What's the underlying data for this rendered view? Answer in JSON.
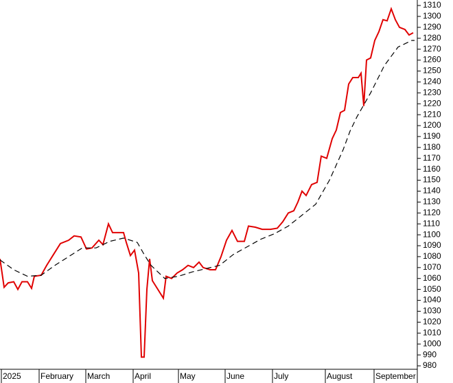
{
  "chart_data": {
    "type": "line",
    "xlim": [
      0,
      304
    ],
    "xticks": [
      {
        "value": 1,
        "label": "2025"
      },
      {
        "value": 28.5,
        "label": "February"
      },
      {
        "value": 62.5,
        "label": "March"
      },
      {
        "value": 97,
        "label": "April"
      },
      {
        "value": 130,
        "label": "May"
      },
      {
        "value": 164,
        "label": "June"
      },
      {
        "value": 198.5,
        "label": "July"
      },
      {
        "value": 237,
        "label": "August"
      },
      {
        "value": 272.5,
        "label": "September"
      }
    ],
    "ylim": [
      980,
      1310
    ],
    "yticks": [
      980,
      990,
      1000,
      1010,
      1020,
      1030,
      1040,
      1050,
      1060,
      1070,
      1080,
      1090,
      1100,
      1110,
      1120,
      1130,
      1140,
      1150,
      1160,
      1170,
      1180,
      1190,
      1200,
      1210,
      1220,
      1230,
      1240,
      1250,
      1260,
      1270,
      1280,
      1290,
      1300,
      1310
    ],
    "series": [
      {
        "color": "#e00000",
        "style": "solid",
        "x": [
          0,
          3,
          6,
          10,
          13,
          16,
          20,
          23,
          25,
          30,
          34,
          39,
          44,
          50,
          54,
          59,
          63,
          67,
          72,
          75,
          79,
          82,
          86,
          90,
          92,
          95,
          98,
          101,
          103,
          105,
          107,
          109,
          111,
          115,
          119,
          121,
          125,
          129,
          133,
          137,
          141,
          145,
          148,
          153,
          157,
          161,
          165,
          169,
          173,
          178,
          181,
          186,
          191,
          197,
          202,
          206,
          210,
          214,
          217,
          220,
          223,
          227,
          231,
          234,
          238,
          242,
          245,
          248,
          251,
          254,
          257,
          261,
          263,
          265,
          267,
          270,
          273,
          276,
          279,
          282,
          285,
          288,
          291,
          295,
          298,
          301
        ],
        "values": [
          1078,
          1052,
          1056,
          1057,
          1050,
          1057,
          1057,
          1051,
          1062,
          1063,
          1072,
          1082,
          1092,
          1095,
          1099,
          1098,
          1087,
          1088,
          1095,
          1091,
          1110,
          1102,
          1102,
          1102,
          1093,
          1081,
          1086,
          1065,
          988,
          988,
          1050,
          1078,
          1058,
          1050,
          1042,
          1062,
          1060,
          1065,
          1068,
          1072,
          1070,
          1075,
          1070,
          1068,
          1068,
          1080,
          1095,
          1104,
          1094,
          1094,
          1108,
          1107,
          1105,
          1105,
          1106,
          1112,
          1120,
          1122,
          1130,
          1140,
          1136,
          1146,
          1148,
          1172,
          1170,
          1188,
          1196,
          1212,
          1214,
          1238,
          1244,
          1244,
          1248,
          1218,
          1260,
          1262,
          1278,
          1286,
          1297,
          1296,
          1307,
          1297,
          1290,
          1288,
          1283,
          1285
        ]
      },
      {
        "color": "#000000",
        "style": "dashed",
        "x": [
          0,
          10,
          20,
          30,
          40,
          50,
          60,
          70,
          80,
          90,
          100,
          105,
          110,
          120,
          130,
          140,
          150,
          160,
          170,
          180,
          190,
          200,
          210,
          220,
          230,
          240,
          250,
          255,
          260,
          270,
          280,
          290,
          300,
          302
        ],
        "values": [
          1077,
          1068,
          1062,
          1063,
          1072,
          1080,
          1088,
          1088,
          1094,
          1097,
          1093,
          1082,
          1072,
          1060,
          1062,
          1066,
          1069,
          1072,
          1082,
          1089,
          1096,
          1101,
          1108,
          1118,
          1128,
          1150,
          1178,
          1195,
          1208,
          1230,
          1255,
          1272,
          1278,
          1278
        ]
      }
    ]
  }
}
